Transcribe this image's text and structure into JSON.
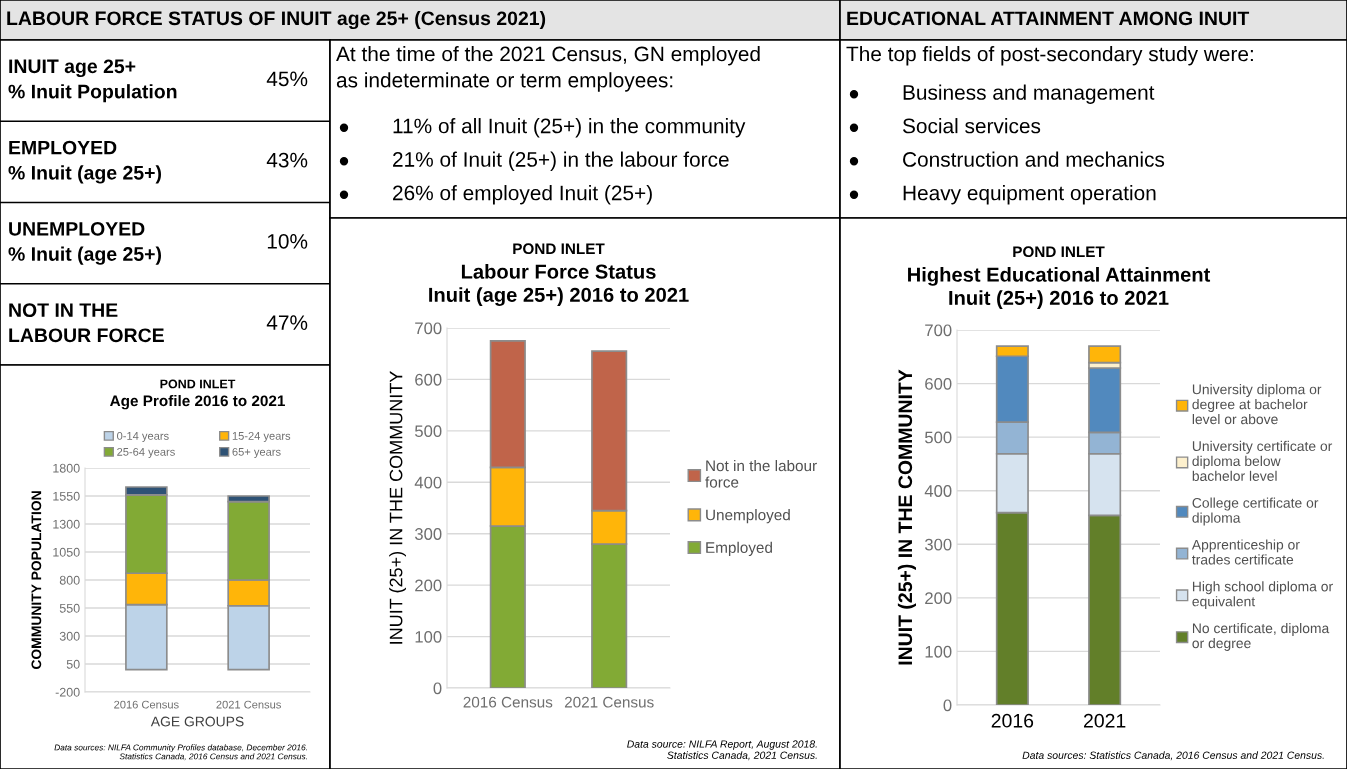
{
  "chart_data": [
    {
      "type": "other",
      "title": "LABOUR FORCE STATUS OF INUIT age 25+ (Census 2021)",
      "categories": [
        "INUIT age 25+\n% Inuit Population",
        "EMPLOYED\n% Inuit (age 25+)",
        "UNEMPLOYED\n% Inuit (age 25+)",
        "NOT IN THE\nLABOUR FORCE"
      ],
      "annotations": [
        "45%",
        "43%",
        "10%",
        "47%"
      ]
    },
    {
      "type": "other",
      "annotations": [
        "At the time of the 2021 Census, GN employed\nas indeterminate or term employees:",
        "11% of all Inuit (25+) in the community",
        "21% of Inuit (25+) in the labour force",
        "26% of employed Inuit (25+)"
      ]
    },
    {
      "type": "other",
      "title": "EDUCATIONAL ATTAINMENT AMONG INUIT",
      "annotations": [
        "The top fields of post-secondary study were:",
        "Business and management",
        "Social services",
        "Construction and mechanics",
        "Heavy equipment operation"
      ]
    },
    {
      "type": "bar",
      "title": "POND INLET",
      "subtitle": "Age Profile 2016 to 2021",
      "xlabel": "AGE GROUPS",
      "ylabel": "COMMUNITY POPULATION",
      "categories": [
        "2016 Census",
        "2021 Census"
      ],
      "stacked": true,
      "legend": "top",
      "grid": "y",
      "ylim": [
        -200,
        1800
      ],
      "yticks": [
        -200,
        50,
        300,
        550,
        800,
        1050,
        1300,
        1550,
        1800
      ],
      "series": [
        {
          "name": "0-14 years",
          "color": "#bdd3e8",
          "values": [
            580,
            570
          ]
        },
        {
          "name": "15-24 years",
          "color": "#ffb509",
          "values": [
            280,
            230
          ]
        },
        {
          "name": "25-64 years",
          "color": "#82aa35",
          "values": [
            700,
            700
          ]
        },
        {
          "name": "65+ years",
          "color": "#2e5275",
          "values": [
            70,
            50
          ]
        }
      ],
      "annotations": [
        "Data sources: NILFA Community Profiles database, December 2016.\nStatistics Canada, 2016 Census and 2021 Census."
      ]
    },
    {
      "type": "bar",
      "title": "POND INLET",
      "subtitle": "Labour Force Status\nInuit (age 25+) 2016 to 2021",
      "ylabel": "INUIT (25+) IN THE COMMUNITY",
      "categories": [
        "2016 Census",
        "2021 Census"
      ],
      "stacked": true,
      "legend": "right",
      "grid": "y",
      "ylim": [
        0,
        700
      ],
      "yticks": [
        0,
        100,
        200,
        300,
        400,
        500,
        600,
        700
      ],
      "series": [
        {
          "name": "Employed",
          "color": "#82aa35",
          "values": [
            315,
            280
          ]
        },
        {
          "name": "Unemployed",
          "color": "#ffb509",
          "values": [
            114,
            65
          ]
        },
        {
          "name": "Not in the labour\nforce",
          "color": "#c0644a",
          "values": [
            246,
            310
          ]
        }
      ],
      "annotations": [
        "Data source: NILFA Report, August 2018.\nStatistics Canada, 2021 Census."
      ]
    },
    {
      "type": "bar",
      "title": "POND INLET",
      "subtitle": "Highest Educational Attainment\nInuit (25+) 2016 to 2021",
      "ylabel": "INUIT (25+) IN THE COMMUNITY",
      "categories": [
        "2016",
        "2021"
      ],
      "stacked": true,
      "legend": "right",
      "grid": "y",
      "ylim": [
        0,
        700
      ],
      "yticks": [
        0,
        100,
        200,
        300,
        400,
        500,
        600,
        700
      ],
      "series": [
        {
          "name": "No certificate, diploma\nor degree",
          "color": "#627f29",
          "values": [
            359,
            354
          ]
        },
        {
          "name": "High school diploma or\nequivalent",
          "color": "#d6e3ef",
          "values": [
            110,
            115
          ]
        },
        {
          "name": "Apprenticeship or\ntrades certificate",
          "color": "#93b4d4",
          "values": [
            59,
            40
          ]
        },
        {
          "name": "College certificate or\ndiploma",
          "color": "#5189be",
          "values": [
            123,
            120
          ]
        },
        {
          "name": "University certificate or\ndiploma below\nbachelor level",
          "color": "#fdf0cd",
          "values": [
            0,
            10
          ]
        },
        {
          "name": "University diploma or\ndegree at bachelor\nlevel or above",
          "color": "#ffb509",
          "values": [
            19,
            31
          ]
        }
      ],
      "annotations": [
        "Data sources: Statistics Canada, 2016 Census and 2021 Census."
      ]
    }
  ]
}
